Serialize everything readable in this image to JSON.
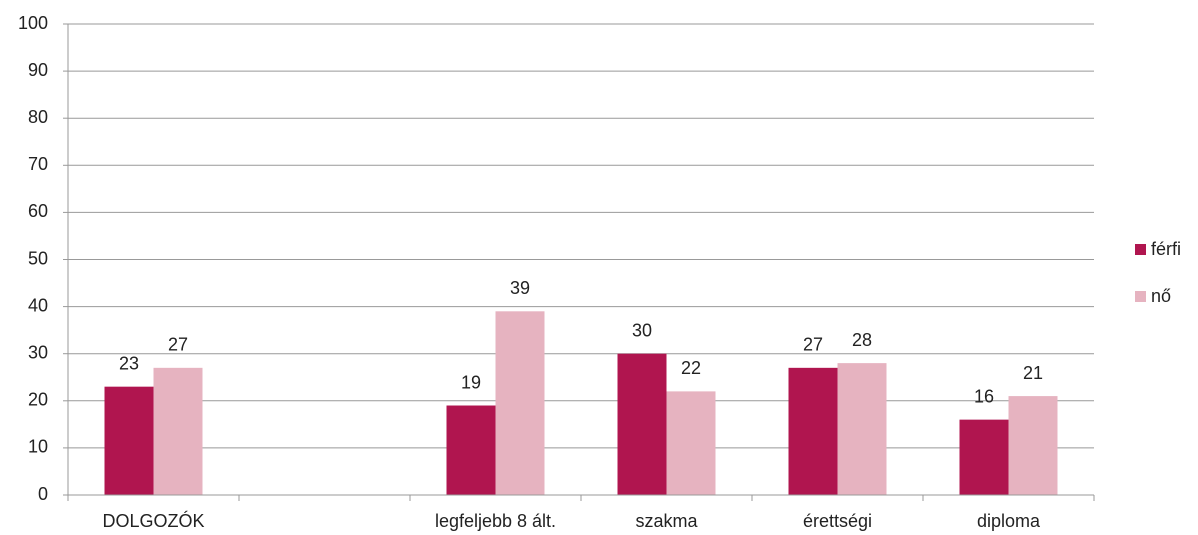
{
  "chart_data": {
    "type": "bar",
    "categories": [
      "DOLGOZÓK",
      null,
      "legfeljebb 8 ált.",
      "szakma",
      "érettségi",
      "diploma"
    ],
    "series": [
      {
        "name": "férfi",
        "color": "#b0154f",
        "values": [
          23,
          null,
          19,
          30,
          27,
          16
        ]
      },
      {
        "name": "nő",
        "color": "#e6b3c0",
        "values": [
          27,
          null,
          39,
          22,
          28,
          21
        ]
      }
    ],
    "ylim": [
      0,
      100
    ],
    "yticks": [
      0,
      10,
      20,
      30,
      40,
      50,
      60,
      70,
      80,
      90,
      100
    ],
    "grid": true,
    "legend": "right"
  }
}
